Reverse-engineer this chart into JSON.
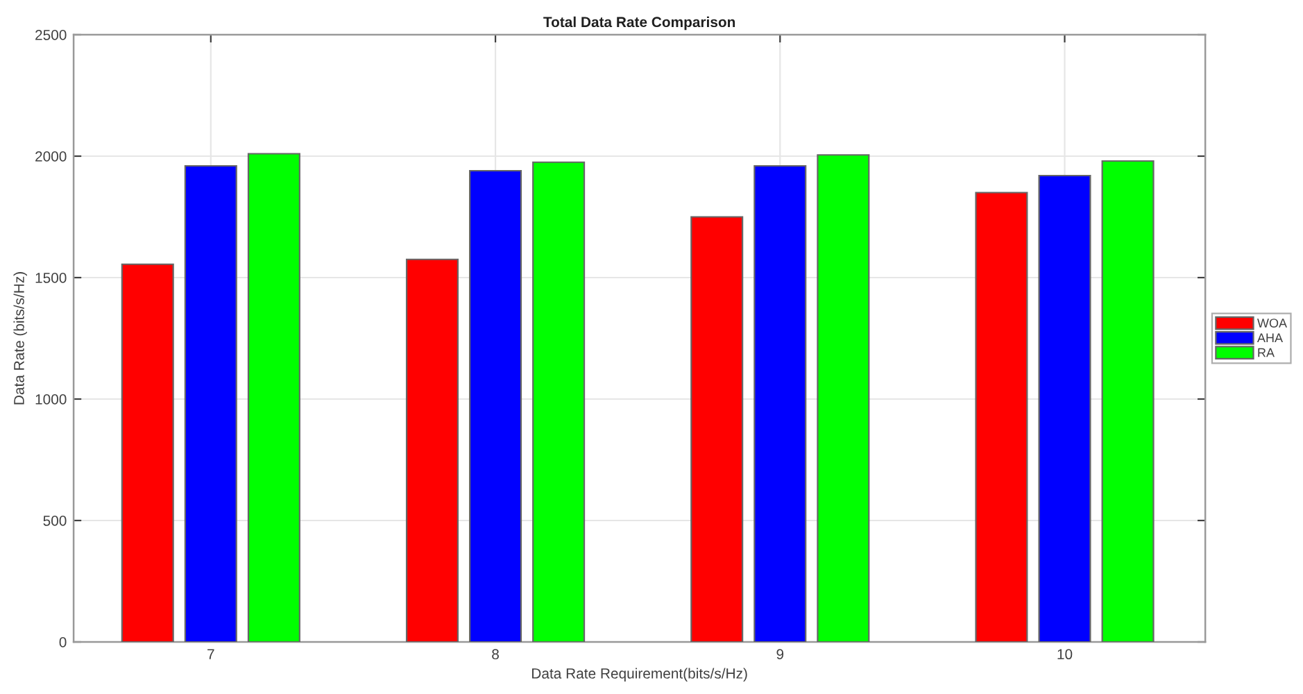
{
  "chart_data": {
    "type": "bar",
    "title": "Total Data Rate Comparison",
    "xlabel": "Data Rate Requirement(bits/s/Hz)",
    "ylabel": "Data Rate (bits/s/Hz)",
    "categories": [
      "7",
      "8",
      "9",
      "10"
    ],
    "series": [
      {
        "name": "WOA",
        "color": "#ff0000",
        "values": [
          1555,
          1575,
          1750,
          1850
        ]
      },
      {
        "name": "AHA",
        "color": "#0000ff",
        "values": [
          1960,
          1940,
          1960,
          1920
        ]
      },
      {
        "name": "RA",
        "color": "#00ff00",
        "values": [
          2010,
          1975,
          2005,
          1980
        ]
      }
    ],
    "ylim": [
      0,
      2500
    ],
    "yticks": [
      0,
      500,
      1000,
      1500,
      2000,
      2500
    ],
    "grid": true,
    "legend": "right"
  }
}
